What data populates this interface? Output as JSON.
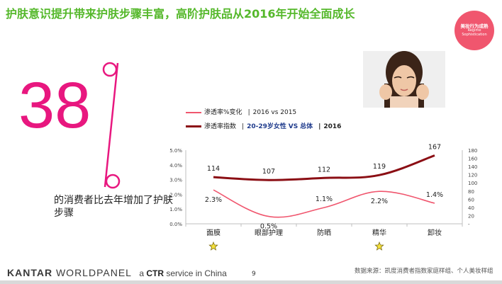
{
  "title": "护肤意识提升带来护肤步骤丰富，高阶护肤品从2016年开始全面成长",
  "badge": {
    "cn": "美妆行为成熟",
    "en_line1": "Regime",
    "en_line2": "Sophistication"
  },
  "highlight": {
    "number": "38",
    "symbol": "%",
    "caption": "的消费者比去年增加了护肤步骤"
  },
  "legend": {
    "series1_label": "渗透率%变化",
    "series1_note": "2016 vs 2015",
    "series2_label": "渗透率指数",
    "series2_note_bold": "20-29岁女性",
    "series2_vs": "VS",
    "series2_note_tail": "总体",
    "series2_year": "2016"
  },
  "colors": {
    "title": "#55b82b",
    "line1": "#f0566e",
    "line2": "#8b0e14",
    "accent": "#e8177f"
  },
  "chart_data": {
    "type": "line",
    "categories": [
      "面膜",
      "眼部护理",
      "防晒",
      "精华",
      "卸妆"
    ],
    "starred": [
      "面膜",
      "精华"
    ],
    "series": [
      {
        "name": "渗透率%变化",
        "axis": "left",
        "values": [
          2.3,
          0.5,
          1.1,
          2.2,
          1.4
        ],
        "labels": [
          "2.3%",
          "0.5%",
          "1.1%",
          "2.2%",
          "1.4%"
        ]
      },
      {
        "name": "渗透率指数",
        "axis": "right",
        "values": [
          114,
          107,
          112,
          119,
          167
        ],
        "labels": [
          "114",
          "107",
          "112",
          "119",
          "167"
        ]
      }
    ],
    "y_left": {
      "ylim": [
        0,
        5
      ],
      "ticks": [
        "0.0%",
        "1.0%",
        "2.0%",
        "3.0%",
        "4.0%",
        "5.0%"
      ]
    },
    "y_right": {
      "ylim": [
        0,
        180
      ],
      "ticks": [
        "-",
        "20",
        "40",
        "60",
        "80",
        "100",
        "120",
        "140",
        "160",
        "180"
      ]
    },
    "grid": false,
    "legend_position": "top"
  },
  "footer": {
    "logo_bold": "KANTAR",
    "logo_light": "WORLDPANEL",
    "tagline_prefix": "a",
    "tagline_bold": "CTR",
    "tagline_rest": "service in China",
    "page": "9",
    "source": "数据来源：凯度消费者指数家庭样组、个人美妆样组"
  }
}
